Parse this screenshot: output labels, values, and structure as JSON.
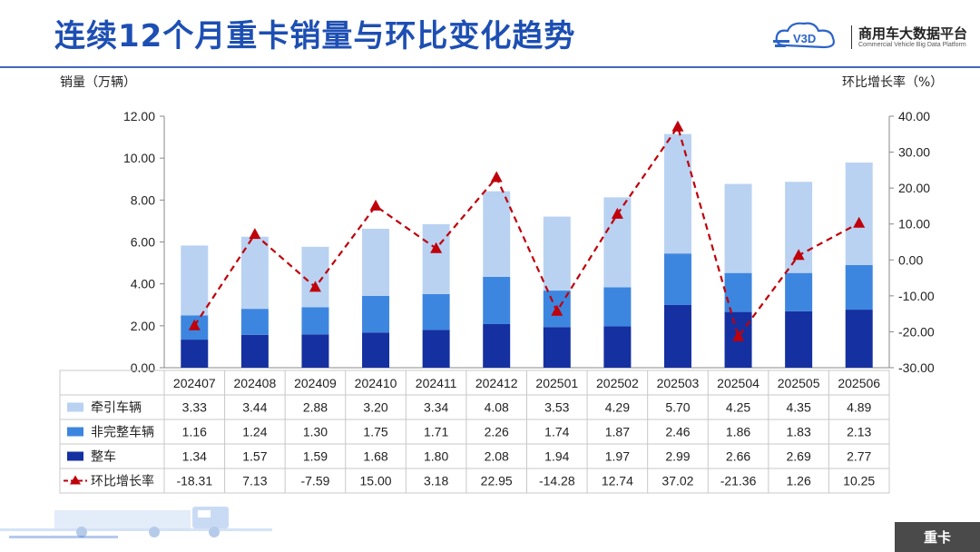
{
  "page": {
    "title": "连续12个月重卡销量与环比变化趋势",
    "brand_name": "商用车大数据平台",
    "brand_sub": "Commercial Vehicle Big Data Platform",
    "brand_logo_text": "V3D",
    "footer_tag": "重卡"
  },
  "chart_data": {
    "type": "bar",
    "stacked": true,
    "ylabel": "销量（万辆）",
    "y2label": "环比增长率（%）",
    "ylim": [
      0,
      12
    ],
    "y_ticks": [
      0,
      2,
      4,
      6,
      8,
      10,
      12
    ],
    "y2lim": [
      -30,
      40
    ],
    "y2_ticks": [
      -30,
      -20,
      -10,
      0,
      10,
      20,
      30,
      40
    ],
    "categories": [
      "202407",
      "202408",
      "202409",
      "202410",
      "202411",
      "202412",
      "202501",
      "202502",
      "202503",
      "202504",
      "202505",
      "202506"
    ],
    "series": [
      {
        "name": "牵引车辆",
        "kind": "bar",
        "color": "#b9d2f2",
        "values": [
          3.33,
          3.44,
          2.88,
          3.2,
          3.34,
          4.08,
          3.53,
          4.29,
          5.7,
          4.25,
          4.35,
          4.89
        ]
      },
      {
        "name": "非完整车辆",
        "kind": "bar",
        "color": "#3d86e0",
        "values": [
          1.16,
          1.24,
          1.3,
          1.75,
          1.71,
          2.26,
          1.74,
          1.87,
          2.46,
          1.86,
          1.83,
          2.13
        ]
      },
      {
        "name": "整车",
        "kind": "bar",
        "color": "#1530a0",
        "values": [
          1.34,
          1.57,
          1.59,
          1.68,
          1.8,
          2.08,
          1.94,
          1.97,
          2.99,
          2.66,
          2.69,
          2.77
        ]
      },
      {
        "name": "环比增长率",
        "kind": "line",
        "axis": "right",
        "color": "#c0000a",
        "values": [
          -18.31,
          7.13,
          -7.59,
          15.0,
          3.18,
          22.95,
          -14.28,
          12.74,
          37.02,
          -21.36,
          1.26,
          10.25
        ]
      }
    ],
    "table_rows": [
      {
        "label": "牵引车辆",
        "cells": [
          "3.33",
          "3.44",
          "2.88",
          "3.20",
          "3.34",
          "4.08",
          "3.53",
          "4.29",
          "5.70",
          "4.25",
          "4.35",
          "4.89"
        ]
      },
      {
        "label": "非完整车辆",
        "cells": [
          "1.16",
          "1.24",
          "1.30",
          "1.75",
          "1.71",
          "2.26",
          "1.74",
          "1.87",
          "2.46",
          "1.86",
          "1.83",
          "2.13"
        ]
      },
      {
        "label": "整车",
        "cells": [
          "1.34",
          "1.57",
          "1.59",
          "1.68",
          "1.80",
          "2.08",
          "1.94",
          "1.97",
          "2.99",
          "2.66",
          "2.69",
          "2.77"
        ]
      },
      {
        "label": "环比增长率",
        "cells": [
          "-18.31",
          "7.13",
          "-7.59",
          "15.00",
          "3.18",
          "22.95",
          "-14.28",
          "12.74",
          "37.02",
          "-21.36",
          "1.26",
          "10.25"
        ]
      }
    ]
  }
}
